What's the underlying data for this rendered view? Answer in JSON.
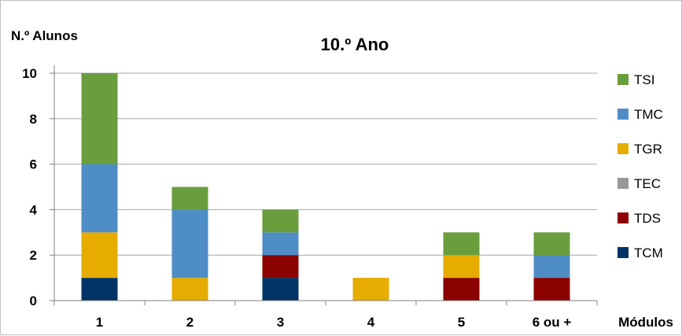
{
  "chart_data": {
    "type": "bar",
    "stacked": true,
    "title": "10.º Ano",
    "ylabel": "N.º Alunos",
    "xlabel": "Módulos",
    "categories": [
      "1",
      "2",
      "3",
      "4",
      "5",
      "6 ou +"
    ],
    "ylim": [
      0,
      10
    ],
    "yticks": [
      0,
      2,
      4,
      6,
      8,
      10
    ],
    "grid": true,
    "legend_position": "right",
    "series": [
      {
        "name": "TCM",
        "color": "#003366",
        "values": [
          1,
          0,
          1,
          0,
          0,
          0
        ]
      },
      {
        "name": "TDS",
        "color": "#8B0000",
        "values": [
          0,
          0,
          1,
          0,
          1,
          1
        ]
      },
      {
        "name": "TEC",
        "color": "#999999",
        "values": [
          0,
          0,
          0,
          0,
          0,
          0
        ]
      },
      {
        "name": "TGR",
        "color": "#E6AC00",
        "values": [
          2,
          1,
          0,
          1,
          1,
          0
        ]
      },
      {
        "name": "TMC",
        "color": "#4F8DC6",
        "values": [
          3,
          3,
          1,
          0,
          0,
          1
        ]
      },
      {
        "name": "TSI",
        "color": "#6A9E3D",
        "values": [
          4,
          1,
          1,
          0,
          1,
          1
        ]
      }
    ]
  }
}
